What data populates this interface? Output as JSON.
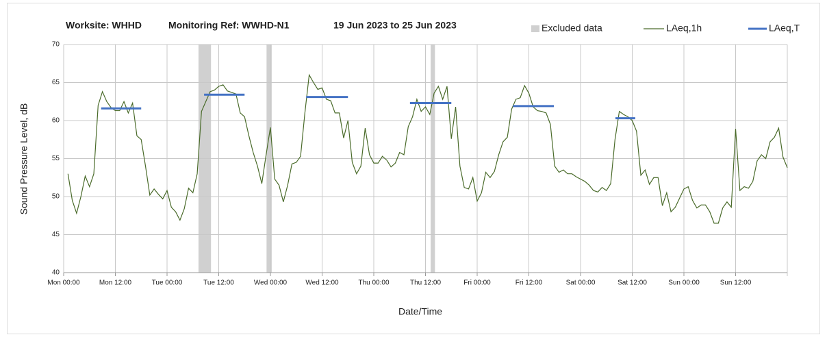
{
  "chart_data": {
    "type": "line",
    "title_parts": [
      "Worksite: WHHD",
      "Monitoring Ref: WWHD-N1",
      "19 Jun 2023 to 25 Jun 2023"
    ],
    "xlabel": "Date/Time",
    "ylabel": "Sound Pressure Level, dB",
    "xlim": [
      0,
      168
    ],
    "ylim": [
      40,
      70
    ],
    "yticks": [
      40,
      45,
      50,
      55,
      60,
      65,
      70
    ],
    "xticks": [
      {
        "value": 0,
        "label": "Mon 00:00"
      },
      {
        "value": 12,
        "label": "Mon 12:00"
      },
      {
        "value": 24,
        "label": "Tue 00:00"
      },
      {
        "value": 36,
        "label": "Tue 12:00"
      },
      {
        "value": 48,
        "label": "Wed 00:00"
      },
      {
        "value": 60,
        "label": "Wed 12:00"
      },
      {
        "value": 72,
        "label": "Thu 00:00"
      },
      {
        "value": 84,
        "label": "Thu 12:00"
      },
      {
        "value": 96,
        "label": "Fri 00:00"
      },
      {
        "value": 108,
        "label": "Fri 12:00"
      },
      {
        "value": 120,
        "label": "Sat 00:00"
      },
      {
        "value": 132,
        "label": "Sat 12:00"
      },
      {
        "value": 144,
        "label": "Sun 00:00"
      },
      {
        "value": 156,
        "label": "Sun 12:00"
      }
    ],
    "grid": true,
    "excluded": {
      "name": "Excluded data",
      "color": "#d0d0d0",
      "ranges": [
        [
          31.3,
          34.2
        ],
        [
          47.1,
          48.3
        ],
        [
          85.2,
          86.2
        ]
      ]
    },
    "x": [
      1,
      2,
      3,
      4,
      5,
      6,
      7,
      8,
      9,
      10,
      11,
      12,
      13,
      14,
      15,
      16,
      17,
      18,
      19,
      20,
      21,
      22,
      23,
      24,
      25,
      26,
      27,
      28,
      29,
      30,
      31,
      32,
      33,
      34,
      35,
      36,
      37,
      38,
      39,
      40,
      41,
      42,
      43,
      44,
      45,
      46,
      47,
      48,
      49,
      50,
      51,
      52,
      53,
      54,
      55,
      56,
      57,
      58,
      59,
      60,
      61,
      62,
      63,
      64,
      65,
      66,
      67,
      68,
      69,
      70,
      71,
      72,
      73,
      74,
      75,
      76,
      77,
      78,
      79,
      80,
      81,
      82,
      83,
      84,
      85,
      86,
      87,
      88,
      89,
      90,
      91,
      92,
      93,
      94,
      95,
      96,
      97,
      98,
      99,
      100,
      101,
      102,
      103,
      104,
      105,
      106,
      107,
      108,
      109,
      110,
      111,
      112,
      113,
      114,
      115,
      116,
      117,
      118,
      119,
      120,
      121,
      122,
      123,
      124,
      125,
      126,
      127,
      128,
      129,
      130,
      131,
      132,
      133,
      134,
      135,
      136,
      137,
      138,
      139,
      140,
      141,
      142,
      143,
      144,
      145,
      146,
      147,
      148,
      149,
      150,
      151,
      152,
      153,
      154,
      155,
      156,
      157,
      158,
      159,
      160,
      161,
      162,
      163,
      164,
      165,
      166,
      167,
      168
    ],
    "series": [
      {
        "name": "LAeq,1h",
        "color": "#4a6b2a",
        "values": [
          53,
          49.5,
          47.8,
          50,
          52.7,
          51.3,
          53,
          62,
          63.8,
          62.5,
          61.7,
          61.3,
          61.3,
          62.5,
          61,
          62.3,
          58,
          57.5,
          54,
          50.2,
          51,
          50.3,
          49.7,
          50.8,
          48.6,
          48,
          46.9,
          48.4,
          51.1,
          50.5,
          53,
          61.2,
          62.5,
          63.8,
          64,
          64.5,
          64.7,
          63.9,
          63.7,
          63.5,
          61,
          60.5,
          58,
          55.8,
          54,
          51.7,
          55.5,
          59.1,
          52.3,
          51.5,
          49.3,
          51.5,
          54.3,
          54.5,
          55.3,
          61,
          66,
          65,
          64.1,
          64.3,
          62.8,
          62.6,
          61,
          61,
          57.7,
          60,
          54.5,
          53,
          54,
          59,
          55.5,
          54.4,
          54.4,
          55.3,
          54.8,
          53.9,
          54.4,
          55.8,
          55.5,
          59.2,
          60.5,
          62.8,
          61.2,
          61.8,
          60.8,
          63.6,
          64.5,
          62.8,
          64.5,
          57.6,
          61.8,
          54,
          51.2,
          51,
          52.5,
          49.4,
          50.5,
          53.2,
          52.5,
          53.3,
          55.5,
          57.2,
          57.8,
          61.5,
          62.8,
          63,
          64.6,
          63.6,
          61.8,
          61.3,
          61.2,
          61,
          59.5,
          54,
          53.2,
          53.5,
          53,
          53,
          52.6,
          52.3,
          52,
          51.5,
          50.8,
          50.6,
          51.2,
          50.8,
          51.7,
          57.5,
          61.2,
          60.8,
          60.5,
          60,
          58.6,
          52.8,
          53.5,
          51.6,
          52.5,
          52.5,
          48.8,
          50.5,
          48,
          48.6,
          49.8,
          51,
          51.3,
          49.5,
          48.5,
          48.9,
          48.9,
          48,
          46.5,
          46.5,
          48.5,
          49.3,
          48.6,
          58.9,
          50.8,
          51.3,
          51.1,
          52,
          54.7,
          55.5,
          55,
          57.2,
          57.8,
          59,
          55.2,
          53.8
        ]
      }
    ],
    "periods": {
      "name": "LAeq,T",
      "color": "#4472c4",
      "items": [
        {
          "start": 8.7,
          "end": 18,
          "value": 61.6
        },
        {
          "start": 32.6,
          "end": 42,
          "value": 63.4
        },
        {
          "start": 56.3,
          "end": 66,
          "value": 63.1
        },
        {
          "start": 80.4,
          "end": 90,
          "value": 62.3
        },
        {
          "start": 104.3,
          "end": 113.8,
          "value": 61.9
        },
        {
          "start": 128.1,
          "end": 132.7,
          "value": 60.3
        }
      ]
    }
  }
}
